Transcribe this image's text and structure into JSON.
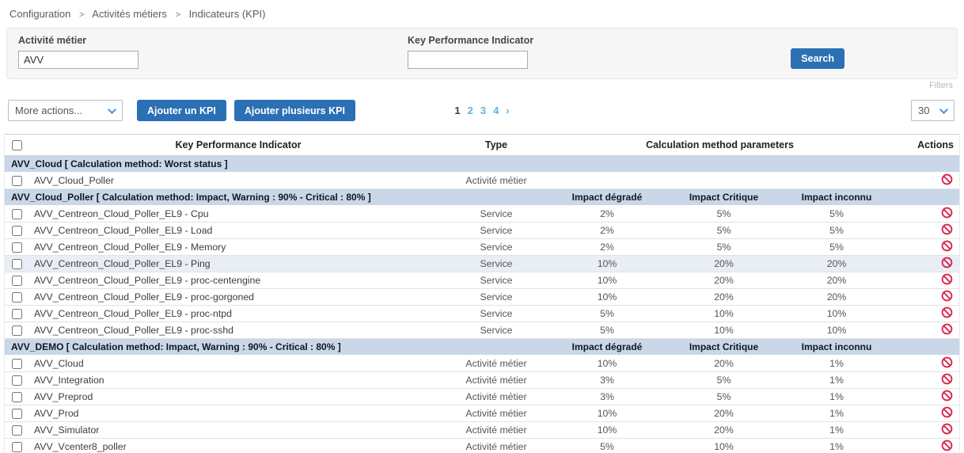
{
  "breadcrumb": {
    "separator": ">",
    "items": [
      "Configuration",
      "Activités métiers",
      "Indicateurs (KPI)"
    ]
  },
  "filters": {
    "business_activity": {
      "label": "Activité métier",
      "value": "AVV"
    },
    "kpi": {
      "label": "Key Performance Indicator",
      "value": ""
    },
    "search_label": "Search",
    "filters_label": "Filters"
  },
  "toolbar": {
    "more_actions": "More actions...",
    "add_kpi_label": "Ajouter un KPI",
    "add_multiple_kpi_label": "Ajouter plusieurs KPI",
    "pagination": {
      "pages": [
        "1",
        "2",
        "3",
        "4"
      ],
      "current": "1",
      "next": "›"
    },
    "page_size": "30"
  },
  "table": {
    "headers": {
      "kpi": "Key Performance Indicator",
      "type": "Type",
      "calculation": "Calculation method parameters",
      "actions": "Actions"
    },
    "groups": [
      {
        "title": "AVV_Cloud [ Calculation method: Worst status ]",
        "subheaders": [],
        "rows": [
          {
            "name": "AVV_Cloud_Poller",
            "type": "Activité métier",
            "values": [
              "",
              "",
              ""
            ],
            "highlight": false
          }
        ]
      },
      {
        "title": "AVV_Cloud_Poller [ Calculation method: Impact, Warning : 90% - Critical : 80% ]",
        "subheaders": [
          "Impact dégradé",
          "Impact Critique",
          "Impact inconnu"
        ],
        "rows": [
          {
            "name": "AVV_Centreon_Cloud_Poller_EL9 - Cpu",
            "type": "Service",
            "values": [
              "2%",
              "5%",
              "5%"
            ],
            "highlight": false
          },
          {
            "name": "AVV_Centreon_Cloud_Poller_EL9 - Load",
            "type": "Service",
            "values": [
              "2%",
              "5%",
              "5%"
            ],
            "highlight": false
          },
          {
            "name": "AVV_Centreon_Cloud_Poller_EL9 - Memory",
            "type": "Service",
            "values": [
              "2%",
              "5%",
              "5%"
            ],
            "highlight": false
          },
          {
            "name": "AVV_Centreon_Cloud_Poller_EL9 - Ping",
            "type": "Service",
            "values": [
              "10%",
              "20%",
              "20%"
            ],
            "highlight": true
          },
          {
            "name": "AVV_Centreon_Cloud_Poller_EL9 - proc-centengine",
            "type": "Service",
            "values": [
              "10%",
              "20%",
              "20%"
            ],
            "highlight": false
          },
          {
            "name": "AVV_Centreon_Cloud_Poller_EL9 - proc-gorgoned",
            "type": "Service",
            "values": [
              "10%",
              "20%",
              "20%"
            ],
            "highlight": false
          },
          {
            "name": "AVV_Centreon_Cloud_Poller_EL9 - proc-ntpd",
            "type": "Service",
            "values": [
              "5%",
              "10%",
              "10%"
            ],
            "highlight": false
          },
          {
            "name": "AVV_Centreon_Cloud_Poller_EL9 - proc-sshd",
            "type": "Service",
            "values": [
              "5%",
              "10%",
              "10%"
            ],
            "highlight": false
          }
        ]
      },
      {
        "title": "AVV_DEMO [ Calculation method: Impact, Warning : 90% - Critical : 80% ]",
        "subheaders": [
          "Impact dégradé",
          "Impact Critique",
          "Impact inconnu"
        ],
        "rows": [
          {
            "name": "AVV_Cloud",
            "type": "Activité métier",
            "values": [
              "10%",
              "20%",
              "1%"
            ],
            "highlight": false
          },
          {
            "name": "AVV_Integration",
            "type": "Activité métier",
            "values": [
              "3%",
              "5%",
              "1%"
            ],
            "highlight": false
          },
          {
            "name": "AVV_Preprod",
            "type": "Activité métier",
            "values": [
              "3%",
              "5%",
              "1%"
            ],
            "highlight": false
          },
          {
            "name": "AVV_Prod",
            "type": "Activité métier",
            "values": [
              "10%",
              "20%",
              "1%"
            ],
            "highlight": false
          },
          {
            "name": "AVV_Simulator",
            "type": "Activité métier",
            "values": [
              "10%",
              "20%",
              "1%"
            ],
            "highlight": false
          },
          {
            "name": "AVV_Vcenter8_poller",
            "type": "Activité métier",
            "values": [
              "5%",
              "10%",
              "1%"
            ],
            "highlight": false
          }
        ]
      }
    ]
  },
  "colors": {
    "accent_blue": "#2b70b4",
    "pagination_blue": "#5fb2e3",
    "group_header_bg": "#c9d7e8",
    "row_highlight_bg": "#e9eef5",
    "danger_red": "#d9274e"
  },
  "icons": {
    "delete": "ban-icon",
    "dropdown": "chevron-down-icon",
    "next_page": "chevron-right-icon"
  }
}
